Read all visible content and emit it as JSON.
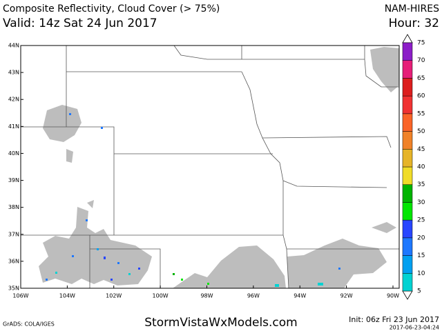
{
  "header": {
    "title": "Composite Reflectivity, Cloud Cover (> 75%)",
    "model": "NAM-HIRES",
    "valid": "Valid: 14z Sat 24 Jun 2017",
    "hour": "Hour: 32"
  },
  "map": {
    "lat_ticks": [
      {
        "value": 44,
        "label": "44N"
      },
      {
        "value": 43,
        "label": "43N"
      },
      {
        "value": 42,
        "label": "42N"
      },
      {
        "value": 41,
        "label": "41N"
      },
      {
        "value": 40,
        "label": "40N"
      },
      {
        "value": 39,
        "label": "39N"
      },
      {
        "value": 38,
        "label": "38N"
      },
      {
        "value": 37,
        "label": "37N"
      },
      {
        "value": 36,
        "label": "36N"
      },
      {
        "value": 35,
        "label": "35N"
      }
    ],
    "lon_ticks": [
      {
        "value": -106,
        "label": "106W"
      },
      {
        "value": -104,
        "label": "104W"
      },
      {
        "value": -102,
        "label": "102W"
      },
      {
        "value": -100,
        "label": "100W"
      },
      {
        "value": -98,
        "label": "98W"
      },
      {
        "value": -96,
        "label": "96W"
      },
      {
        "value": -94,
        "label": "94W"
      },
      {
        "value": -92,
        "label": "92W"
      },
      {
        "value": -90,
        "label": "90W"
      }
    ]
  },
  "colorbar": {
    "levels": [
      5,
      10,
      15,
      20,
      25,
      30,
      35,
      40,
      45,
      50,
      55,
      60,
      65,
      70,
      75
    ],
    "colors": [
      "#00d2d2",
      "#00a0f0",
      "#1e78ff",
      "#2846ff",
      "#00e600",
      "#00b400",
      "#f0dc28",
      "#e6b428",
      "#f08228",
      "#fa6428",
      "#f03232",
      "#dc1e1e",
      "#e61e78",
      "#8c1ec8"
    ]
  },
  "footer": {
    "credit": "GrADS: COLA/IGES",
    "site": "StormVistaWxModels.com",
    "init": "Init: 06z Fri 23 Jun 2017",
    "stamp": "2017-06-23-04:24"
  }
}
